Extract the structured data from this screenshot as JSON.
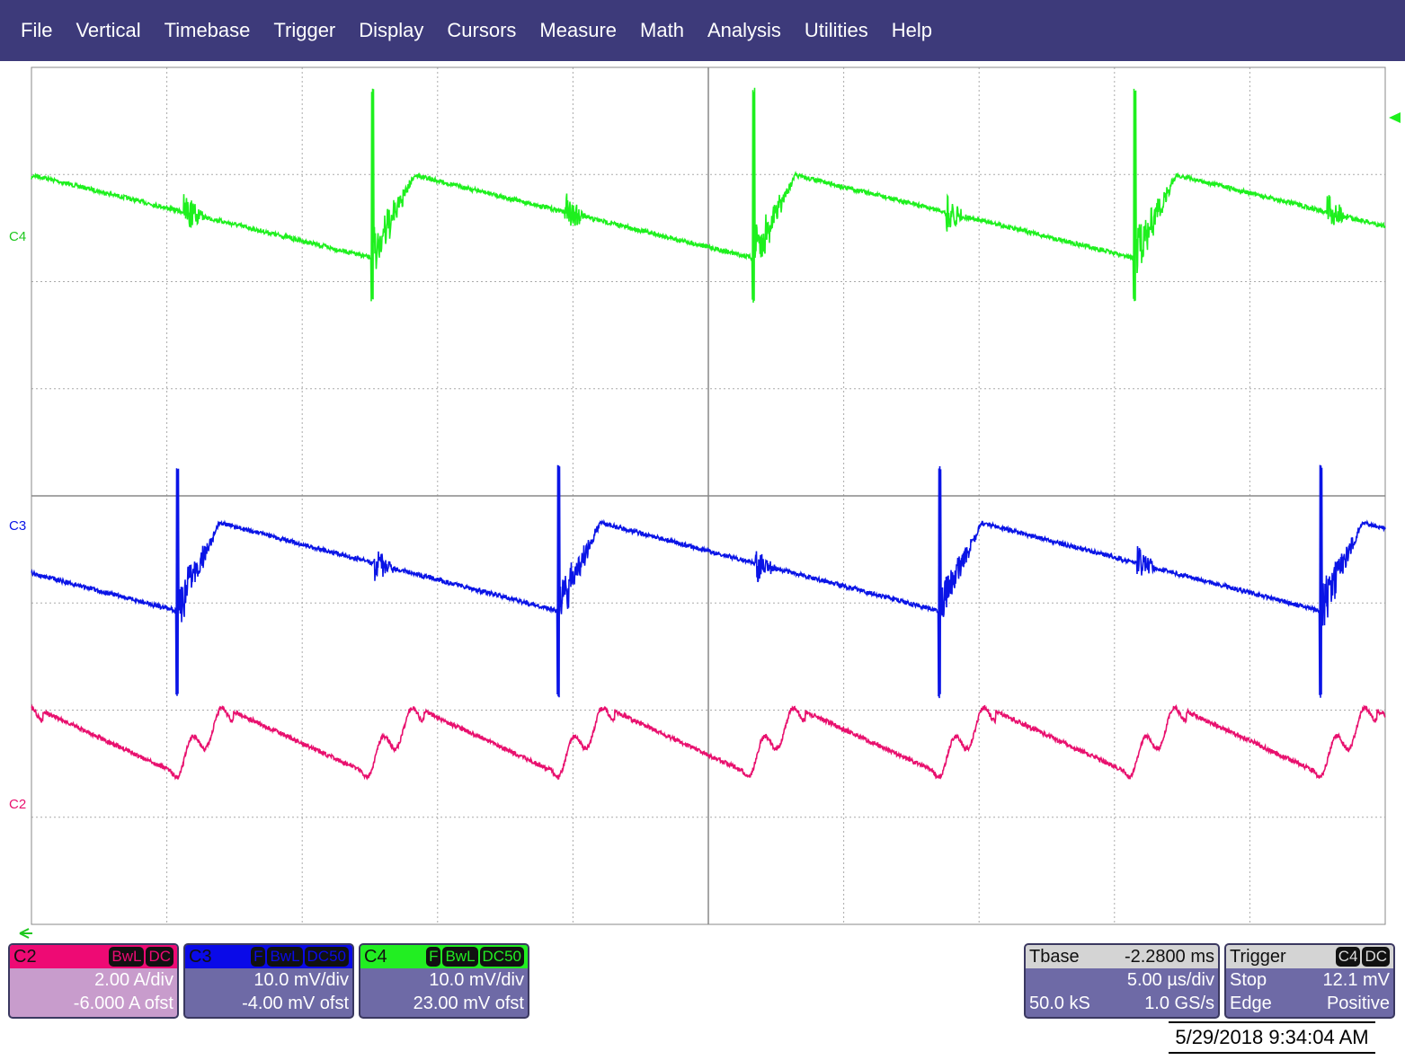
{
  "menu": [
    "File",
    "Vertical",
    "Timebase",
    "Trigger",
    "Display",
    "Cursors",
    "Measure",
    "Math",
    "Analysis",
    "Utilities",
    "Help"
  ],
  "channels": {
    "c2": {
      "label": "C2",
      "tags": [
        "BwL",
        "DC"
      ],
      "scale": "2.00 A/div",
      "offset": "-6.000 A ofst",
      "color": "#e8106e"
    },
    "c3": {
      "label": "C3",
      "tags": [
        "F",
        "BwL",
        "DC50"
      ],
      "scale": "10.0 mV/div",
      "offset": "-4.00 mV ofst",
      "color": "#0a14e6"
    },
    "c4": {
      "label": "C4",
      "tags": [
        "F",
        "BwL",
        "DC50"
      ],
      "scale": "10.0 mV/div",
      "offset": "23.00 mV ofst",
      "color": "#1ef01e"
    }
  },
  "timebase": {
    "label": "Tbase",
    "delay": "-2.2800 ms",
    "scale": "5.00 µs/div",
    "samples": "50.0 kS",
    "rate": "1.0 GS/s"
  },
  "trigger": {
    "label": "Trigger",
    "tags": [
      "C4",
      "DC"
    ],
    "mode": "Stop",
    "level": "12.1 mV",
    "type": "Edge",
    "slope": "Positive"
  },
  "timestamp": "5/29/2018 9:34:04 AM"
}
